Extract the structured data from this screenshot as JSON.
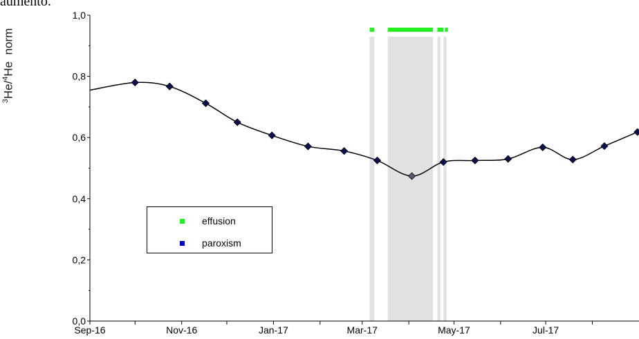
{
  "fragment_text": "aumento.",
  "colors": {
    "line": "#000000",
    "marker": "#0a0f4d",
    "marker_in_event": "#5a5a78",
    "shade": "#e2e2e2",
    "effusion": "#22ee22",
    "paroxism": "#0000cc"
  },
  "chart_data": {
    "type": "line",
    "title": "",
    "xlabel": "",
    "ylabel_base": "He/",
    "ylabel_sup1": "3",
    "ylabel_sup2": "4",
    "ylabel_tail": "He  norm",
    "ylim": [
      0.0,
      1.0
    ],
    "yticks": [
      "0,0",
      "0,2",
      "0,4",
      "0,6",
      "0,8",
      "1,0"
    ],
    "ytick_values": [
      0.0,
      0.2,
      0.4,
      0.6,
      0.8,
      1.0
    ],
    "xlim": [
      "2016-09-01",
      "2017-09-01"
    ],
    "xtick_labels": [
      "Sep-16",
      "Nov-16",
      "Jan-17",
      "Mar-17",
      "May-17",
      "Jul-17"
    ],
    "xtick_dates": [
      "2016-09-01",
      "2016-11-01",
      "2017-01-01",
      "2017-03-01",
      "2017-05-01",
      "2017-07-01"
    ],
    "minor_tick_dates": [
      "2016-10-01",
      "2016-12-01",
      "2017-02-01",
      "2017-04-01",
      "2017-06-01",
      "2017-08-01"
    ],
    "grid": false,
    "legend_position": "lower-left",
    "series": [
      {
        "x": [
          "2016-10-01",
          "2016-10-24",
          "2016-11-17",
          "2016-12-08",
          "2016-12-31",
          "2017-01-24",
          "2017-02-17",
          "2017-03-11",
          "2017-04-03",
          "2017-04-24",
          "2017-05-15",
          "2017-06-06",
          "2017-06-29",
          "2017-07-19",
          "2017-08-09",
          "2017-08-31"
        ],
        "values": [
          0.78,
          0.767,
          0.712,
          0.65,
          0.607,
          0.571,
          0.556,
          0.525,
          0.474,
          0.52,
          0.525,
          0.53,
          0.568,
          0.528,
          0.572,
          0.618
        ]
      }
    ],
    "shaded_periods": [
      [
        "2017-03-06",
        "2017-03-09"
      ],
      [
        "2017-03-18",
        "2017-04-17"
      ],
      [
        "2017-04-20",
        "2017-04-22"
      ],
      [
        "2017-04-24",
        "2017-04-26"
      ]
    ],
    "effusion_periods": [
      [
        "2017-03-06",
        "2017-03-09"
      ],
      [
        "2017-03-18",
        "2017-04-17"
      ],
      [
        "2017-04-20",
        "2017-04-24"
      ],
      [
        "2017-04-25",
        "2017-04-27"
      ]
    ],
    "legend": [
      {
        "label": "effusion",
        "color": "#22ee22"
      },
      {
        "label": "paroxism",
        "color": "#0000cc"
      }
    ]
  }
}
